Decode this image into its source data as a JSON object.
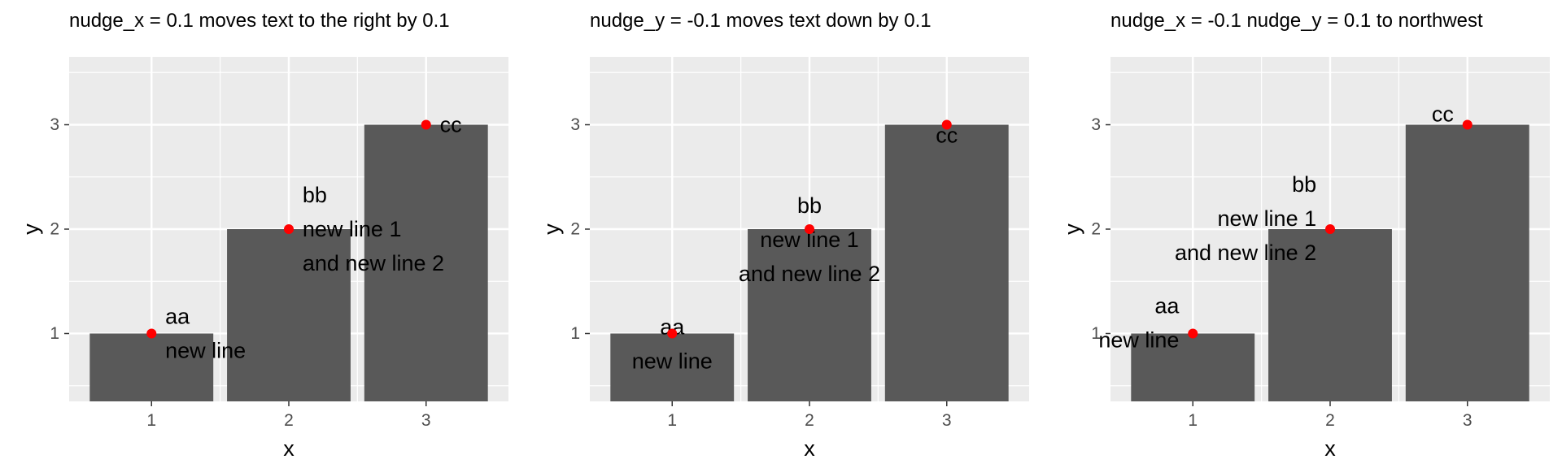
{
  "chart_data": [
    {
      "type": "bar",
      "title": "nudge_x = 0.1 moves text to the right by 0.1",
      "xlabel": "x",
      "ylabel": "y",
      "categories": [
        "1",
        "2",
        "3"
      ],
      "x": [
        1,
        2,
        3
      ],
      "values": [
        1,
        2,
        3
      ],
      "labels": [
        [
          "aa",
          "new line"
        ],
        [
          "bb",
          "new line 1",
          "and new line 2"
        ],
        [
          "cc"
        ]
      ],
      "nudge_x": 0.1,
      "nudge_y": 0,
      "hjust": "left",
      "xlim": [
        0.4,
        3.6
      ],
      "ylim": [
        0.35,
        3.65
      ],
      "yticks": [
        1,
        2,
        3
      ],
      "grid": true,
      "colors": {
        "bar": "#595959",
        "point": "#ff0000",
        "panel": "#ebebeb",
        "grid": "#ffffff"
      }
    },
    {
      "type": "bar",
      "title": "nudge_y = -0.1 moves text down by 0.1",
      "xlabel": "x",
      "ylabel": "y",
      "categories": [
        "1",
        "2",
        "3"
      ],
      "x": [
        1,
        2,
        3
      ],
      "values": [
        1,
        2,
        3
      ],
      "labels": [
        [
          "aa",
          "new line"
        ],
        [
          "bb",
          "new line 1",
          "and new line 2"
        ],
        [
          "cc"
        ]
      ],
      "nudge_x": 0,
      "nudge_y": -0.1,
      "hjust": "center",
      "xlim": [
        0.4,
        3.6
      ],
      "ylim": [
        0.35,
        3.65
      ],
      "yticks": [
        1,
        2,
        3
      ],
      "grid": true,
      "colors": {
        "bar": "#595959",
        "point": "#ff0000",
        "panel": "#ebebeb",
        "grid": "#ffffff"
      }
    },
    {
      "type": "bar",
      "title": "nudge_x = -0.1 nudge_y = 0.1 to northwest",
      "xlabel": "x",
      "ylabel": "y",
      "categories": [
        "1",
        "2",
        "3"
      ],
      "x": [
        1,
        2,
        3
      ],
      "values": [
        1,
        2,
        3
      ],
      "labels": [
        [
          "aa",
          "new line"
        ],
        [
          "bb",
          "new line 1",
          "and new line 2"
        ],
        [
          "cc"
        ]
      ],
      "nudge_x": -0.1,
      "nudge_y": 0.1,
      "hjust": "right",
      "xlim": [
        0.4,
        3.6
      ],
      "ylim": [
        0.35,
        3.65
      ],
      "yticks": [
        1,
        2,
        3
      ],
      "grid": true,
      "colors": {
        "bar": "#595959",
        "point": "#ff0000",
        "panel": "#ebebeb",
        "grid": "#ffffff"
      }
    }
  ]
}
